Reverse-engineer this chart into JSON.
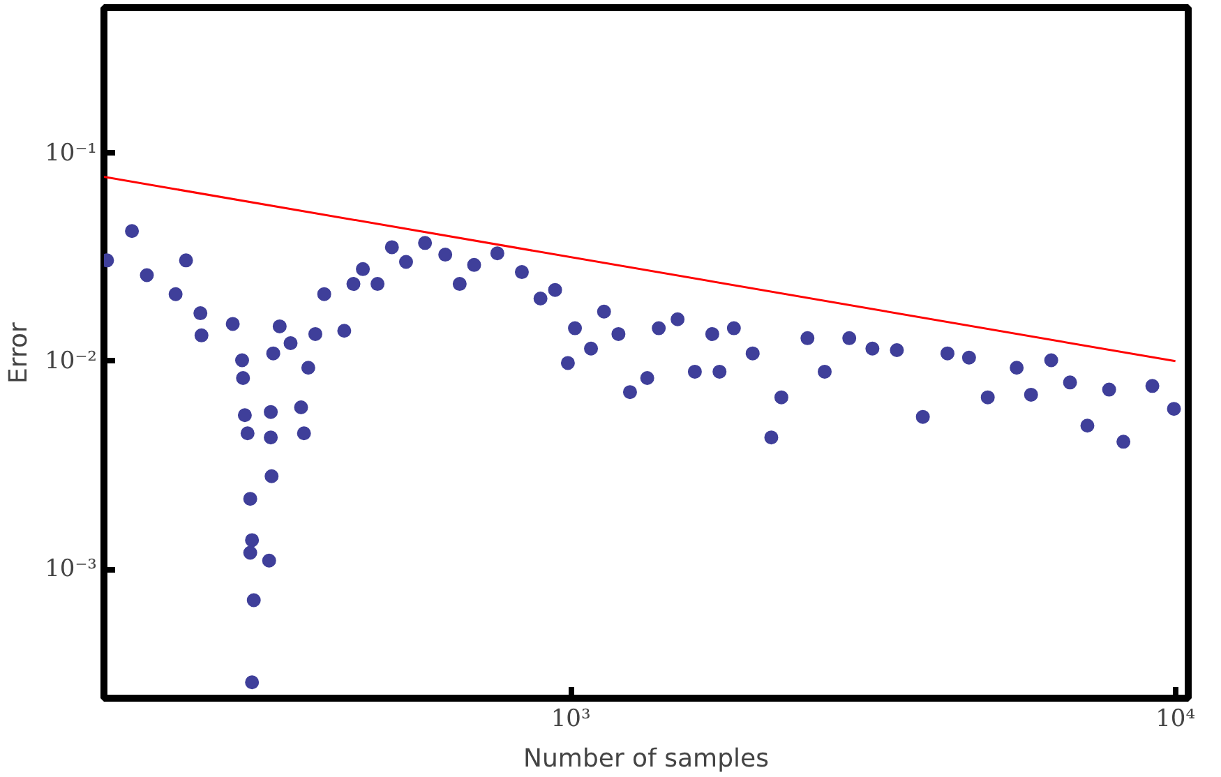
{
  "chart_data": {
    "type": "scatter",
    "xlabel": "Number of samples",
    "ylabel": "Error",
    "log": "xy",
    "grid": false,
    "xlim": [
      169,
      10500
    ],
    "ylim": [
      0.00024,
      0.5
    ],
    "xticks": [
      {
        "value": 1000,
        "label": "10³"
      },
      {
        "value": 10000,
        "label": "10⁴"
      }
    ],
    "yticks": [
      {
        "value": 0.001,
        "label": "10⁻³"
      },
      {
        "value": 0.01,
        "label": "10⁻²"
      },
      {
        "value": 0.1,
        "label": "10⁻¹"
      }
    ],
    "series": [
      {
        "color": "#3f3f9a",
        "x": [
          171,
          188,
          199,
          222,
          231,
          244,
          245,
          276,
          286,
          287,
          289,
          292,
          295,
          297,
          295,
          299,
          297,
          319,
          319,
          320,
          317,
          322,
          330,
          344,
          358,
          362,
          368,
          378,
          391,
          422,
          437,
          453,
          479,
          506,
          534,
          574,
          620,
          655,
          692,
          756,
          830,
          891,
          942,
          989,
          1016,
          1080,
          1135,
          1199,
          1253,
          1338,
          1398,
          1502,
          1604,
          1714,
          1762,
          1861,
          1999,
          2146,
          2230,
          2463,
          2630,
          2888,
          3154,
          3462,
          3822,
          4198,
          4557,
          4894,
          5464,
          5771,
          6232,
          6695,
          7152,
          7770,
          8204,
          9160,
          9945
        ],
        "marker": "circle",
        "values": [
          0.0305,
          0.0422,
          0.0259,
          0.021,
          0.0305,
          0.017,
          0.0133,
          0.0151,
          0.0101,
          0.0083,
          0.0055,
          0.0045,
          0.00218,
          0.00138,
          0.0012,
          0.00071,
          0.000286,
          0.0057,
          0.0043,
          0.0028,
          0.0011,
          0.0109,
          0.0147,
          0.0122,
          0.006,
          0.0045,
          0.0093,
          0.0135,
          0.021,
          0.014,
          0.0235,
          0.0277,
          0.0235,
          0.0353,
          0.03,
          0.037,
          0.0325,
          0.0235,
          0.029,
          0.033,
          0.0268,
          0.02,
          0.022,
          0.0098,
          0.0144,
          0.0115,
          0.0173,
          0.0135,
          0.0071,
          0.0083,
          0.0144,
          0.0159,
          0.0089,
          0.0135,
          0.0089,
          0.0144,
          0.0109,
          0.0043,
          0.0067,
          0.0129,
          0.0089,
          0.0129,
          0.0115,
          0.0113,
          0.0054,
          0.0109,
          0.0104,
          0.0067,
          0.0093,
          0.0069,
          0.0101,
          0.0079,
          0.0049,
          0.0073,
          0.0041,
          0.0076,
          0.0059
        ]
      },
      {
        "type": "line",
        "marker": "none",
        "color": "#ff0000",
        "x": [
          169,
          10000
        ],
        "values": [
          0.0769,
          0.01
        ]
      }
    ]
  }
}
